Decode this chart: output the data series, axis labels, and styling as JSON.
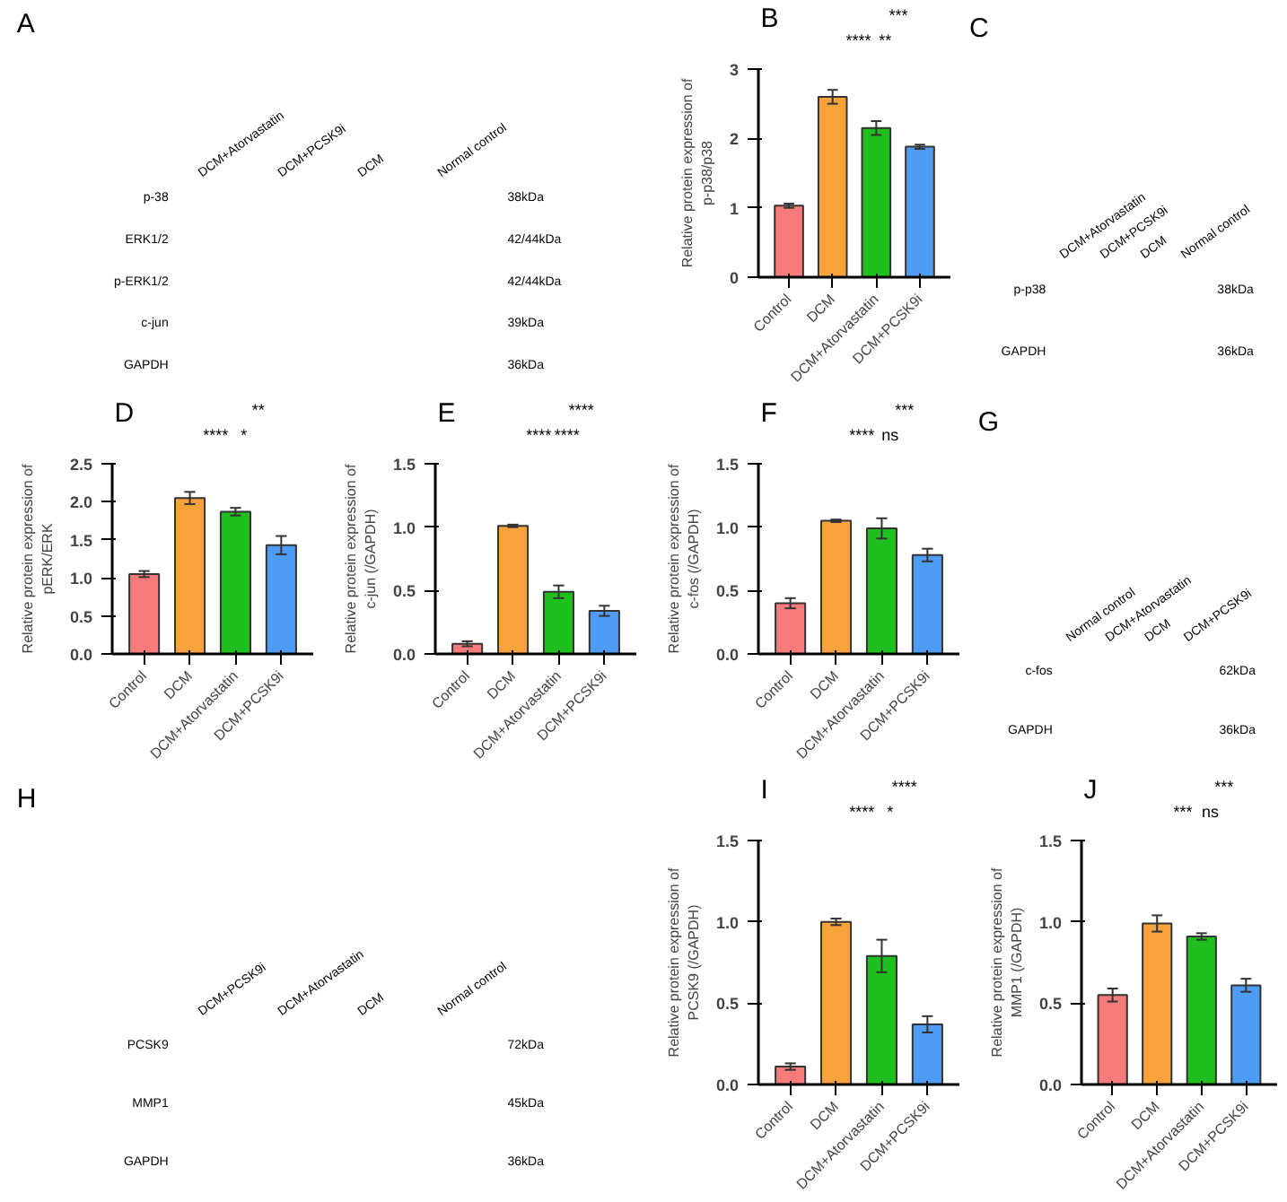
{
  "chart_data": [
    {
      "type": "other",
      "title": "A",
      "categories": [
        "DCM+Atorvastatin",
        "DCM+PCSK9i",
        "DCM",
        "Normal control"
      ],
      "y_categories": [
        "p-38",
        "ERK1/2",
        "p-ERK1/2",
        "c-jun",
        "GAPDH"
      ],
      "y2_categories": [
        "38kDa",
        "42/44kDa",
        "42/44kDa",
        "39kDa",
        "36kDa"
      ]
    },
    {
      "type": "bar",
      "title": "B",
      "ylabel": "Relative protein expression of\np-p38/p38",
      "categories": [
        "Control",
        "DCM",
        "DCM+Atorvastatin",
        "DCM+PCSK9i"
      ],
      "values": [
        1.03,
        2.6,
        2.15,
        1.88
      ],
      "errors": [
        0.03,
        0.1,
        0.1,
        0.03
      ],
      "colors": [
        "#f77b7b",
        "#f7a23b",
        "#1fbf1f",
        "#4f9cf5"
      ],
      "ylim": [
        0,
        3
      ],
      "yticks": [
        0,
        1,
        2,
        3
      ],
      "annotations": [
        "****",
        "**",
        "***"
      ]
    },
    {
      "type": "other",
      "title": "C",
      "categories": [
        "DCM+Atorvastatin",
        "DCM+PCSK9i",
        "DCM",
        "Normal control"
      ],
      "y_categories": [
        "p-p38",
        "GAPDH"
      ],
      "y2_categories": [
        "38kDa",
        "36kDa"
      ]
    },
    {
      "type": "bar",
      "title": "D",
      "ylabel": "Relative protein expression of\npERK/ERK",
      "categories": [
        "Control",
        "DCM",
        "DCM+Atorvastatin",
        "DCM+PCSK9i"
      ],
      "values": [
        1.05,
        2.05,
        1.87,
        1.43
      ],
      "errors": [
        0.04,
        0.08,
        0.05,
        0.12
      ],
      "colors": [
        "#f77b7b",
        "#f7a23b",
        "#1fbf1f",
        "#4f9cf5"
      ],
      "ylim": [
        0,
        2.5
      ],
      "yticks": [
        {
          "value": 0,
          "label": "0.0"
        },
        {
          "value": 0.5,
          "label": "0.5"
        },
        {
          "value": 1,
          "label": "1.0"
        },
        {
          "value": 1.5,
          "label": "1.5"
        },
        {
          "value": 2,
          "label": "2.0"
        },
        {
          "value": 2.5,
          "label": "2.5"
        }
      ],
      "annotations": [
        "****",
        "*",
        "**"
      ]
    },
    {
      "type": "bar",
      "title": "E",
      "ylabel": "Relative protein expression of\nc-jun (/GAPDH)",
      "categories": [
        "Control",
        "DCM",
        "DCM+Atorvastatin",
        "DCM+PCSK9i"
      ],
      "values": [
        0.08,
        1.01,
        0.49,
        0.34
      ],
      "errors": [
        0.02,
        0.01,
        0.05,
        0.04
      ],
      "colors": [
        "#f77b7b",
        "#f7a23b",
        "#1fbf1f",
        "#4f9cf5"
      ],
      "ylim": [
        0,
        1.5
      ],
      "yticks": [
        {
          "value": 0,
          "label": "0.0"
        },
        {
          "value": 0.5,
          "label": "0.5"
        },
        {
          "value": 1,
          "label": "1.0"
        },
        {
          "value": 1.5,
          "label": "1.5"
        }
      ],
      "annotations": [
        "****",
        "****",
        "****"
      ]
    },
    {
      "type": "bar",
      "title": "F",
      "ylabel": "Relative protein expression of\nc-fos (/GAPDH)",
      "categories": [
        "Control",
        "DCM",
        "DCM+Atorvastatin",
        "DCM+PCSK9i"
      ],
      "values": [
        0.4,
        1.05,
        0.99,
        0.78
      ],
      "errors": [
        0.04,
        0.01,
        0.08,
        0.05
      ],
      "colors": [
        "#f77b7b",
        "#f7a23b",
        "#1fbf1f",
        "#4f9cf5"
      ],
      "ylim": [
        0,
        1.5
      ],
      "yticks": [
        {
          "value": 0,
          "label": "0.0"
        },
        {
          "value": 0.5,
          "label": "0.5"
        },
        {
          "value": 1,
          "label": "1.0"
        },
        {
          "value": 1.5,
          "label": "1.5"
        }
      ],
      "annotations": [
        "****",
        "ns",
        "***"
      ]
    },
    {
      "type": "other",
      "title": "G",
      "categories": [
        "Normal control",
        "DCM+Atorvastatin",
        "DCM",
        "DCM+PCSK9i"
      ],
      "y_categories": [
        "c-fos",
        "GAPDH"
      ],
      "y2_categories": [
        "62kDa",
        "36kDa"
      ]
    },
    {
      "type": "other",
      "title": "H",
      "categories": [
        "DCM+PCSK9i",
        "DCM+Atorvastatin",
        "DCM",
        "Normal control"
      ],
      "y_categories": [
        "PCSK9",
        "MMP1",
        "GAPDH"
      ],
      "y2_categories": [
        "72kDa",
        "45kDa",
        "36kDa"
      ]
    },
    {
      "type": "bar",
      "title": "I",
      "ylabel": "Relative protein expression of\nPCSK9 (/GAPDH)",
      "categories": [
        "Control",
        "DCM",
        "DCM+Atorvastatin",
        "DCM+PCSK9i"
      ],
      "values": [
        0.11,
        1.0,
        0.79,
        0.37
      ],
      "errors": [
        0.02,
        0.02,
        0.1,
        0.05
      ],
      "colors": [
        "#f77b7b",
        "#f7a23b",
        "#1fbf1f",
        "#4f9cf5"
      ],
      "ylim": [
        0,
        1.5
      ],
      "yticks": [
        {
          "value": 0,
          "label": "0.0"
        },
        {
          "value": 0.5,
          "label": "0.5"
        },
        {
          "value": 1,
          "label": "1.0"
        },
        {
          "value": 1.5,
          "label": "1.5"
        }
      ],
      "annotations": [
        "****",
        "*",
        "****"
      ]
    },
    {
      "type": "bar",
      "title": "J",
      "ylabel": "Relative protein expression of\nMMP1 (/GAPDH)",
      "categories": [
        "Control",
        "DCM",
        "DCM+Atorvastatin",
        "DCM+PCSK9i"
      ],
      "values": [
        0.55,
        0.99,
        0.91,
        0.61
      ],
      "errors": [
        0.04,
        0.05,
        0.02,
        0.04
      ],
      "colors": [
        "#f77b7b",
        "#f7a23b",
        "#1fbf1f",
        "#4f9cf5"
      ],
      "ylim": [
        0,
        1.5
      ],
      "yticks": [
        {
          "value": 0,
          "label": "0.0"
        },
        {
          "value": 0.5,
          "label": "0.5"
        },
        {
          "value": 1,
          "label": "1.0"
        },
        {
          "value": 1.5,
          "label": "1.5"
        }
      ],
      "annotations": [
        "***",
        "ns",
        "***"
      ]
    }
  ]
}
